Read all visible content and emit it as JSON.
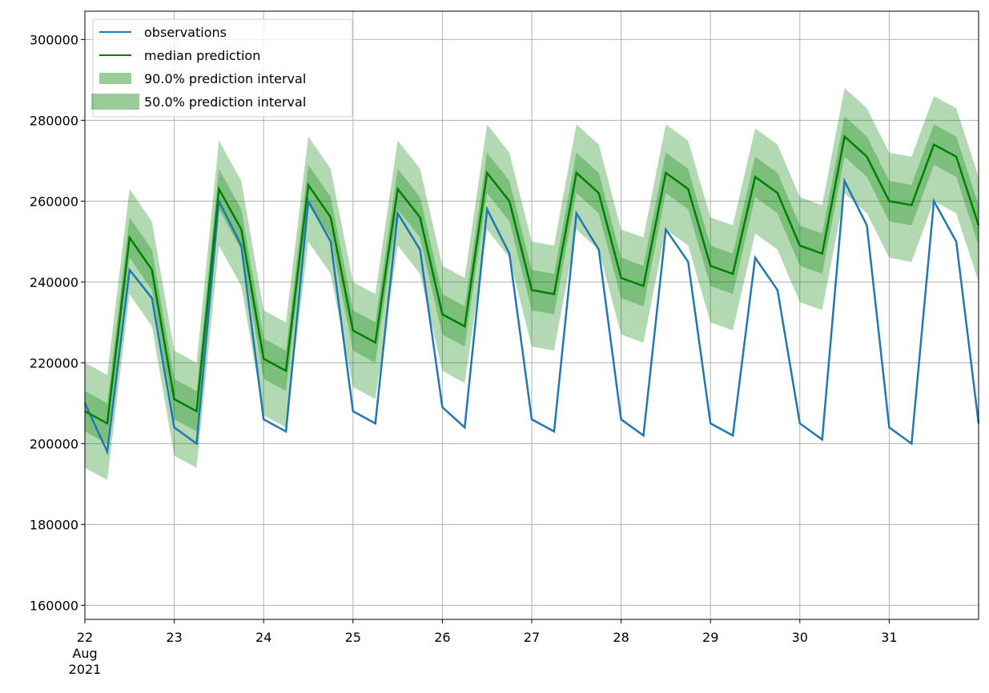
{
  "chart_data": {
    "type": "line",
    "x": [
      22,
      22.25,
      22.5,
      22.75,
      23,
      23.25,
      23.5,
      23.75,
      24,
      24.25,
      24.5,
      24.75,
      25,
      25.25,
      25.5,
      25.75,
      26,
      26.25,
      26.5,
      26.75,
      27,
      27.25,
      27.5,
      27.75,
      28,
      28.25,
      28.5,
      28.75,
      29,
      29.25,
      29.5,
      29.75,
      30,
      30.25,
      30.5,
      30.75,
      31,
      31.25,
      31.5,
      31.75,
      32
    ],
    "xlim": [
      22,
      32
    ],
    "xticks": [
      {
        "value": 22,
        "label": "22 Aug 2021"
      },
      23,
      24,
      25,
      26,
      27,
      28,
      29,
      30,
      31
    ],
    "ylim": [
      156500,
      307000
    ],
    "yticks": [
      160000,
      180000,
      200000,
      220000,
      240000,
      260000,
      280000,
      300000
    ],
    "grid": true,
    "legend": "upper left",
    "bands": [
      {
        "name": "90.0% prediction interval",
        "color": "#008000",
        "low": [
          194000,
          191000,
          237000,
          229000,
          197000,
          194000,
          249000,
          239000,
          207000,
          204000,
          250000,
          242000,
          214000,
          211000,
          249000,
          242000,
          218000,
          215000,
          253000,
          246000,
          224000,
          223000,
          253000,
          248000,
          227000,
          225000,
          253000,
          249000,
          230000,
          228000,
          252000,
          248000,
          235000,
          233000,
          262000,
          257000,
          246000,
          245000,
          260000,
          257000,
          240000
        ],
        "high": [
          220000,
          217000,
          263000,
          255000,
          223000,
          220000,
          275000,
          265000,
          233000,
          230000,
          276000,
          268000,
          240000,
          237000,
          275000,
          268000,
          244000,
          241000,
          279000,
          272000,
          250000,
          249000,
          279000,
          274000,
          253000,
          251000,
          279000,
          275000,
          256000,
          254000,
          278000,
          274000,
          261000,
          259000,
          288000,
          283000,
          272000,
          271000,
          286000,
          283000,
          266000
        ]
      },
      {
        "name": "50.0% prediction interval",
        "color": "#008000",
        "low": [
          203000,
          200000,
          246000,
          238000,
          206000,
          203000,
          258000,
          248000,
          216000,
          213000,
          259000,
          251000,
          223000,
          220000,
          258000,
          251000,
          227000,
          224000,
          262000,
          255000,
          233000,
          232000,
          262000,
          257000,
          236000,
          234000,
          262000,
          258000,
          239000,
          237000,
          261000,
          257000,
          244000,
          242000,
          271000,
          266000,
          255000,
          254000,
          269000,
          266000,
          249000
        ],
        "high": [
          213000,
          210000,
          256000,
          248000,
          216000,
          213000,
          268000,
          258000,
          226000,
          223000,
          269000,
          261000,
          233000,
          230000,
          268000,
          261000,
          237000,
          234000,
          272000,
          265000,
          243000,
          242000,
          272000,
          267000,
          246000,
          244000,
          272000,
          268000,
          249000,
          247000,
          271000,
          267000,
          254000,
          252000,
          281000,
          276000,
          265000,
          264000,
          279000,
          276000,
          259000
        ]
      }
    ],
    "series": [
      {
        "name": "observations",
        "color": "#1f77b4",
        "values": [
          210000,
          198000,
          243000,
          236000,
          204000,
          200000,
          260000,
          249000,
          206000,
          203000,
          260000,
          250000,
          208000,
          205000,
          257000,
          248000,
          209000,
          204000,
          258000,
          247000,
          206000,
          203000,
          257000,
          248000,
          206000,
          202000,
          253000,
          245000,
          205000,
          202000,
          246000,
          238000,
          205000,
          201000,
          265000,
          254000,
          204000,
          200000,
          260000,
          250000,
          205000
        ]
      },
      {
        "name": "median prediction",
        "color": "#008000",
        "values": [
          208000,
          205000,
          251000,
          243000,
          211000,
          208000,
          263000,
          253000,
          221000,
          218000,
          264000,
          256000,
          228000,
          225000,
          263000,
          256000,
          232000,
          229000,
          267000,
          260000,
          238000,
          237000,
          267000,
          262000,
          241000,
          239000,
          267000,
          263000,
          244000,
          242000,
          266000,
          262000,
          249000,
          247000,
          276000,
          271000,
          260000,
          259000,
          274000,
          271000,
          254000
        ]
      }
    ]
  }
}
